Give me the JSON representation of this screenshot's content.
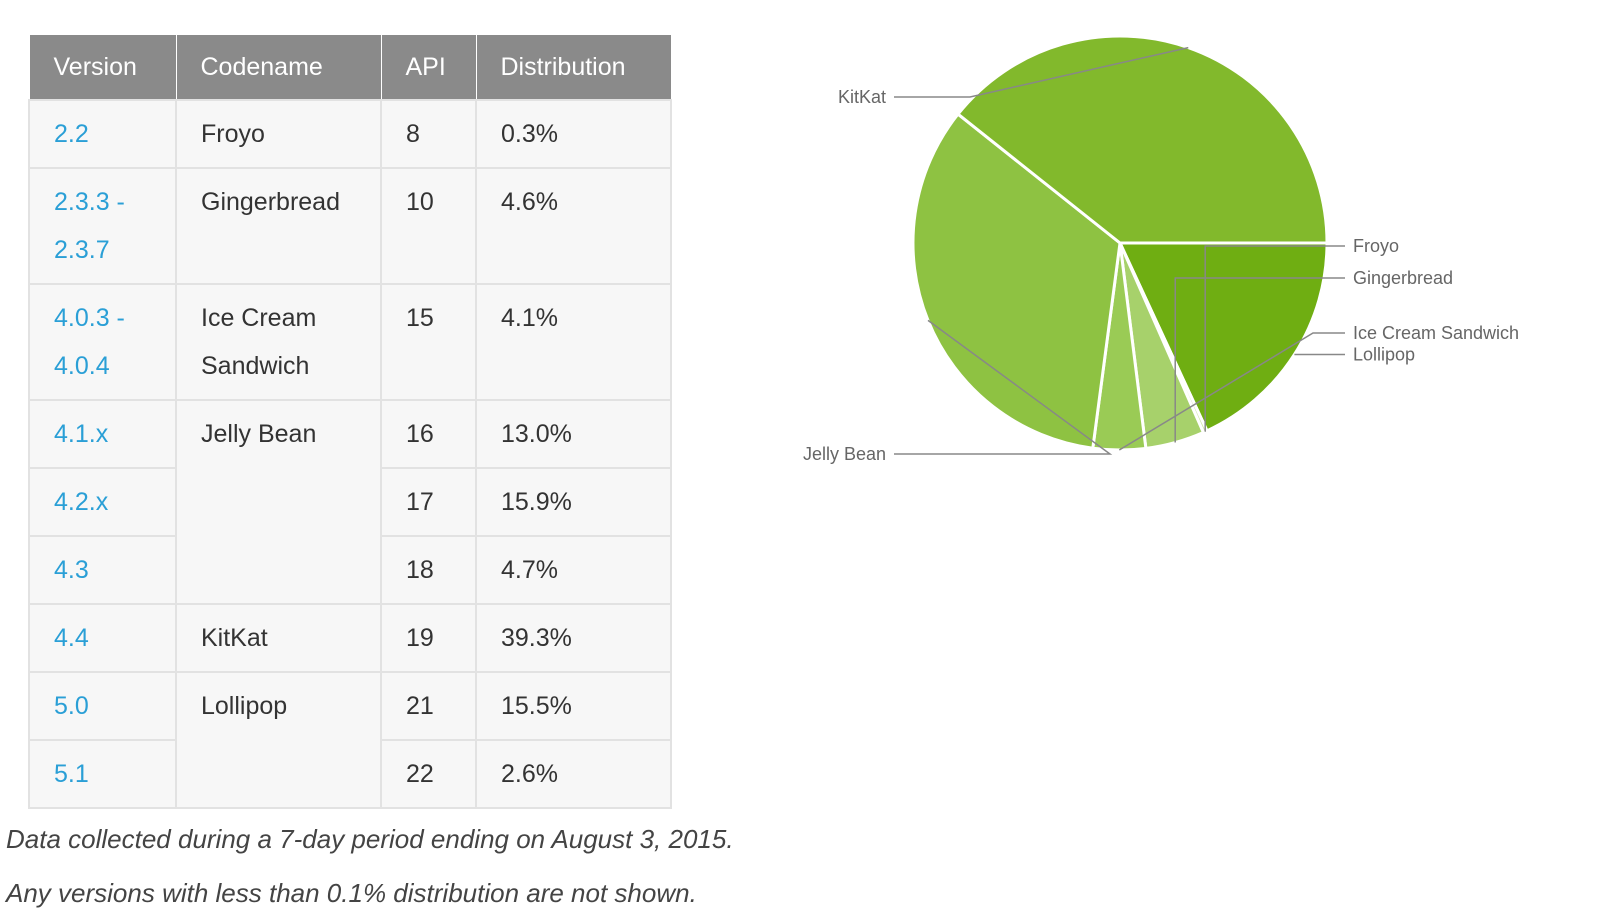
{
  "table": {
    "headers": [
      "Version",
      "Codename",
      "API",
      "Distribution"
    ],
    "rows": [
      {
        "version": "2.2",
        "codename": "Froyo",
        "api": "8",
        "dist": "0.3%"
      },
      {
        "version": "2.3.3 - 2.3.7",
        "codename": "Gingerbread",
        "api": "10",
        "dist": "4.6%"
      },
      {
        "version": "4.0.3 - 4.0.4",
        "codename": "Ice Cream Sandwich",
        "api": "15",
        "dist": "4.1%"
      },
      {
        "version": "4.1.x",
        "codename": "Jelly Bean",
        "api": "16",
        "dist": "13.0%"
      },
      {
        "version": "4.2.x",
        "codename": "",
        "api": "17",
        "dist": "15.9%"
      },
      {
        "version": "4.3",
        "codename": "",
        "api": "18",
        "dist": "4.7%"
      },
      {
        "version": "4.4",
        "codename": "KitKat",
        "api": "19",
        "dist": "39.3%"
      },
      {
        "version": "5.0",
        "codename": "Lollipop",
        "api": "21",
        "dist": "15.5%"
      },
      {
        "version": "5.1",
        "codename": "",
        "api": "22",
        "dist": "2.6%"
      }
    ]
  },
  "chart_data": {
    "type": "pie",
    "slices": [
      {
        "label": "Lollipop",
        "value": 18.1,
        "color": "#6fae12"
      },
      {
        "label": "Froyo",
        "value": 0.3,
        "color": "#cfe6a8"
      },
      {
        "label": "Gingerbread",
        "value": 4.6,
        "color": "#a7d16b"
      },
      {
        "label": "Ice Cream Sandwich",
        "value": 4.1,
        "color": "#9acb55"
      },
      {
        "label": "Jelly Bean",
        "value": 33.6,
        "color": "#8ec242"
      },
      {
        "label": "KitKat",
        "value": 39.3,
        "color": "#82b92c"
      }
    ]
  },
  "footnote": "Data collected during a 7-day period ending on August 3, 2015.",
  "footnote2": "Any versions with less than 0.1% distribution are not shown."
}
